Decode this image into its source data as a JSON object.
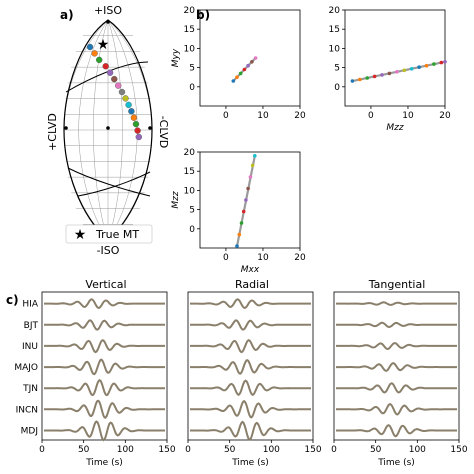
{
  "panel_labels": {
    "a": "a)",
    "b": "b)",
    "c": "c)"
  },
  "lune": {
    "top_label": "+ISO",
    "bottom_label": "-ISO",
    "left_label": "+CLVD",
    "right_label": "-CLVD",
    "legend_label": "True MT",
    "colors": {
      "star": "#e020e0",
      "frame": "#000000"
    },
    "solution_markers": [
      "#1f77b4",
      "#ff7f0e",
      "#2ca02c",
      "#d62728",
      "#9467bd",
      "#8c564b",
      "#e377c2",
      "#7f7f7f",
      "#bcbd22",
      "#17becf",
      "#1f77b4",
      "#ff7f0e",
      "#2ca02c",
      "#d62728",
      "#9467bd"
    ]
  },
  "scatter_panels": [
    {
      "id": "myy",
      "ylabel": "M_yy",
      "xlabel": "",
      "xticks": [
        "0",
        "10",
        "20"
      ],
      "yticks": [
        "0",
        "5",
        "10",
        "15",
        "20"
      ]
    },
    {
      "id": "mzz-top",
      "ylabel": "",
      "xlabel": "M_zz",
      "xticks": [
        "0",
        "10",
        "20"
      ],
      "yticks": [
        "0",
        "5",
        "10",
        "15",
        "20"
      ]
    },
    {
      "id": "mzz-bottom",
      "ylabel": "M_zz",
      "xlabel": "M_xx",
      "xticks": [
        "0",
        "10",
        "20"
      ],
      "yticks": [
        "0",
        "5",
        "10",
        "15",
        "20"
      ]
    }
  ],
  "chart_data": [
    {
      "type": "scatter",
      "xlabel": "",
      "ylabel": "Myy",
      "xlim": [
        -7,
        20
      ],
      "ylim": [
        -5,
        20
      ],
      "x": [
        2.0,
        3.0,
        4.0,
        5.0,
        6.0,
        7.0,
        8.0
      ],
      "y": [
        1.5,
        2.5,
        3.5,
        4.5,
        5.5,
        6.5,
        7.5
      ]
    },
    {
      "type": "scatter",
      "xlabel": "Mzz",
      "ylabel": "",
      "xlim": [
        -7,
        20
      ],
      "ylim": [
        -5,
        20
      ],
      "x": [
        -5,
        -3,
        -1,
        1,
        3,
        5,
        7,
        9,
        11,
        13,
        15,
        17,
        19,
        20
      ],
      "y": [
        1.5,
        1.9,
        2.3,
        2.7,
        3.1,
        3.5,
        3.9,
        4.3,
        4.7,
        5.1,
        5.5,
        5.9,
        6.3,
        6.5
      ]
    },
    {
      "type": "scatter",
      "xlabel": "Mxx",
      "ylabel": "Mzz",
      "xlim": [
        -7,
        20
      ],
      "ylim": [
        -5,
        20
      ],
      "x": [
        3.0,
        3.6,
        4.2,
        4.8,
        5.4,
        6.0,
        6.6,
        7.2,
        7.8
      ],
      "y": [
        -4.5,
        -1.5,
        1.5,
        4.5,
        7.5,
        10.5,
        13.5,
        16.5,
        19.0
      ]
    }
  ],
  "waveforms": {
    "titles": {
      "vertical": "Vertical",
      "radial": "Radial",
      "tangential": "Tangential"
    },
    "stations": [
      "HIA",
      "BJT",
      "INU",
      "MAJO",
      "TJN",
      "INCN",
      "MDJ"
    ],
    "xlabel": "Time (s)",
    "xticks": [
      "0",
      "50",
      "100",
      "150"
    ],
    "colors": {
      "observed": "#8a7f6a",
      "synthetic": "#7a7a7a"
    }
  }
}
